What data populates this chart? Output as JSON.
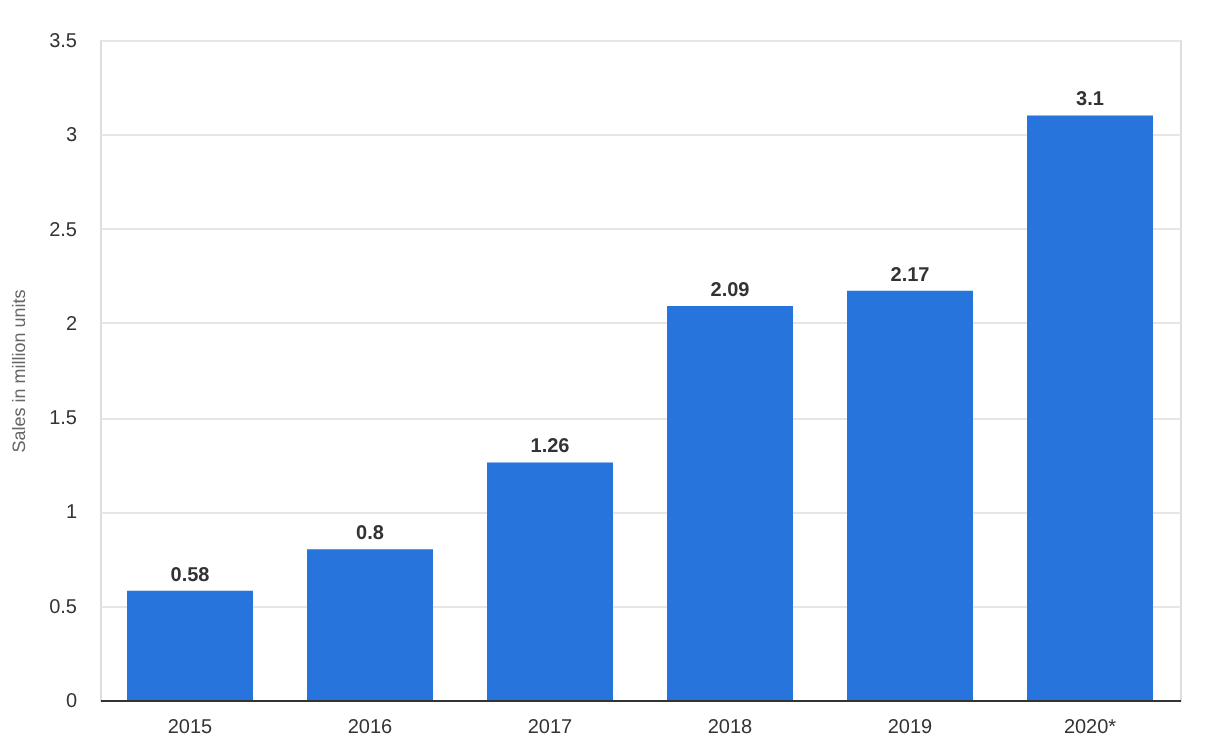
{
  "chart_data": {
    "type": "bar",
    "ylabel": "Sales in million units",
    "categories": [
      "2015",
      "2016",
      "2017",
      "2018",
      "2019",
      "2020*"
    ],
    "values": [
      0.58,
      0.8,
      1.26,
      2.09,
      2.17,
      3.1
    ],
    "color": "#2775dc",
    "ylim": [
      0,
      3.5
    ],
    "yticks": [
      0,
      0.5,
      1,
      1.5,
      2,
      2.5,
      3,
      3.5
    ],
    "grid": "y",
    "data_labels": true
  }
}
